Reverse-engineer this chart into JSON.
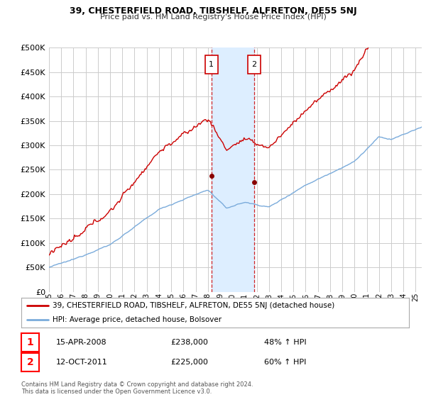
{
  "title": "39, CHESTERFIELD ROAD, TIBSHELF, ALFRETON, DE55 5NJ",
  "subtitle": "Price paid vs. HM Land Registry's House Price Index (HPI)",
  "ylim": [
    0,
    500000
  ],
  "yticks": [
    0,
    50000,
    100000,
    150000,
    200000,
    250000,
    300000,
    350000,
    400000,
    450000,
    500000
  ],
  "xlim_start": 1995.0,
  "xlim_end": 2025.5,
  "transaction1_x": 2008.29,
  "transaction1_y": 238000,
  "transaction1_label": "1",
  "transaction1_date": "15-APR-2008",
  "transaction1_price": "£238,000",
  "transaction1_hpi": "48% ↑ HPI",
  "transaction2_x": 2011.79,
  "transaction2_y": 225000,
  "transaction2_label": "2",
  "transaction2_date": "12-OCT-2011",
  "transaction2_price": "£225,000",
  "transaction2_hpi": "60% ↑ HPI",
  "legend_line1": "39, CHESTERFIELD ROAD, TIBSHELF, ALFRETON, DE55 5NJ (detached house)",
  "legend_line2": "HPI: Average price, detached house, Bolsover",
  "footer1": "Contains HM Land Registry data © Crown copyright and database right 2024.",
  "footer2": "This data is licensed under the Open Government Licence v3.0.",
  "price_line_color": "#cc0000",
  "hpi_line_color": "#7aabdb",
  "highlight_box_color": "#ddeeff",
  "highlight_border_color": "#cc0000",
  "transaction_dot_color": "#880000",
  "background_color": "#ffffff",
  "grid_color": "#cccccc",
  "title_fontsize": 9,
  "subtitle_fontsize": 8
}
